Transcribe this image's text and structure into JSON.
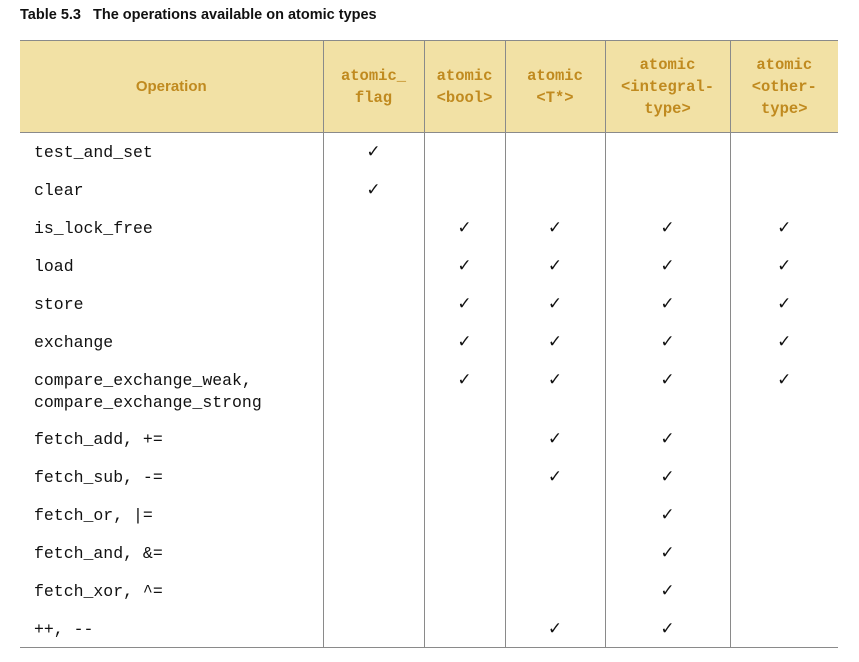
{
  "caption": {
    "number": "Table 5.3",
    "title": "The operations available on atomic types"
  },
  "columns": [
    {
      "line1": "Operation",
      "line2": "",
      "line3": ""
    },
    {
      "line1": "atomic_",
      "line2": "flag",
      "line3": ""
    },
    {
      "line1": "atomic",
      "line2": "<bool>",
      "line3": ""
    },
    {
      "line1": "atomic",
      "line2": "<T*>",
      "line3": ""
    },
    {
      "line1": "atomic",
      "line2": "<integral-",
      "line3": "type>"
    },
    {
      "line1": "atomic",
      "line2": "<other-",
      "line3": "type>"
    }
  ],
  "check_symbol": "✓",
  "rows": [
    {
      "op": "test_and_set",
      "marks": [
        true,
        false,
        false,
        false,
        false
      ]
    },
    {
      "op": "clear",
      "marks": [
        true,
        false,
        false,
        false,
        false
      ]
    },
    {
      "op": "is_lock_free",
      "marks": [
        false,
        true,
        true,
        true,
        true
      ]
    },
    {
      "op": "load",
      "marks": [
        false,
        true,
        true,
        true,
        true
      ]
    },
    {
      "op": "store",
      "marks": [
        false,
        true,
        true,
        true,
        true
      ]
    },
    {
      "op": "exchange",
      "marks": [
        false,
        true,
        true,
        true,
        true
      ]
    },
    {
      "op": "compare_exchange_weak,\ncompare_exchange_strong",
      "marks": [
        false,
        true,
        true,
        true,
        true
      ]
    },
    {
      "op": "fetch_add, +=",
      "marks": [
        false,
        false,
        true,
        true,
        false
      ]
    },
    {
      "op": "fetch_sub, -=",
      "marks": [
        false,
        false,
        true,
        true,
        false
      ]
    },
    {
      "op": "fetch_or, |=",
      "marks": [
        false,
        false,
        false,
        true,
        false
      ]
    },
    {
      "op": "fetch_and, &=",
      "marks": [
        false,
        false,
        false,
        true,
        false
      ]
    },
    {
      "op": "fetch_xor, ^=",
      "marks": [
        false,
        false,
        false,
        true,
        false
      ]
    },
    {
      "op": "++, --",
      "marks": [
        false,
        false,
        true,
        true,
        false
      ]
    }
  ]
}
